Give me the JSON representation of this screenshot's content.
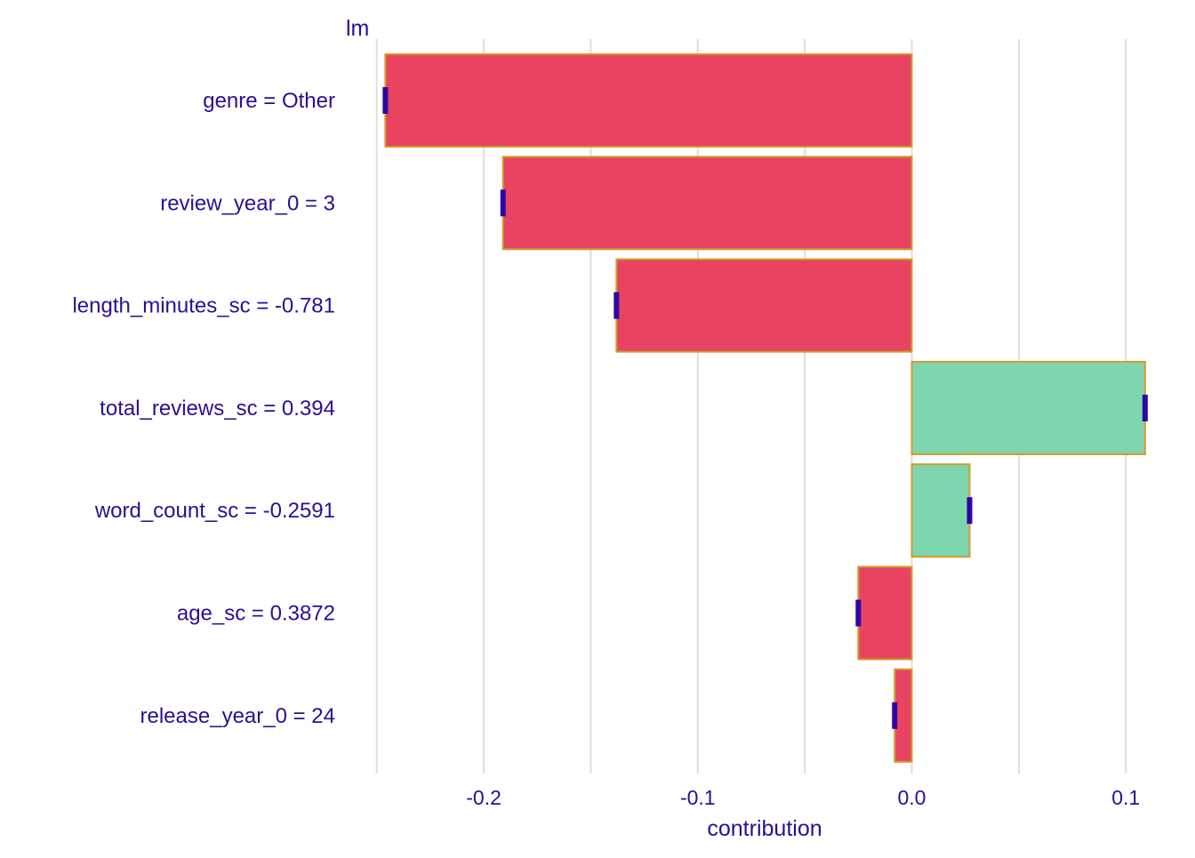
{
  "chart_data": {
    "type": "bar",
    "orientation": "horizontal",
    "panel_title": "lm",
    "xlabel": "contribution",
    "ylabel": "",
    "xlim": [
      -0.25,
      0.11
    ],
    "x_ticks": [
      -0.2,
      -0.1,
      0.0,
      0.1
    ],
    "x_tick_labels": [
      "-0.2",
      "-0.1",
      "0.0",
      "0.1"
    ],
    "x_gridlines": [
      -0.25,
      -0.2,
      -0.15,
      -0.1,
      -0.05,
      0.0,
      0.05,
      0.1
    ],
    "grid": true,
    "legend": "none",
    "colors": {
      "positive": "#7dd6ad",
      "negative": "#e84461",
      "bar_outline": "#d39a2b",
      "marker": "#2d06a6",
      "text": "#2d0e92",
      "grid": "#dedede"
    },
    "categories": [
      "genre = Other",
      "review_year_0 = 3",
      "length_minutes_sc = -0.781",
      "total_reviews_sc = 0.394",
      "word_count_sc = -0.2591",
      "age_sc = 0.3872",
      "release_year_0 = 24"
    ],
    "values": [
      -0.246,
      -0.191,
      -0.138,
      0.109,
      0.027,
      -0.025,
      -0.008
    ]
  }
}
